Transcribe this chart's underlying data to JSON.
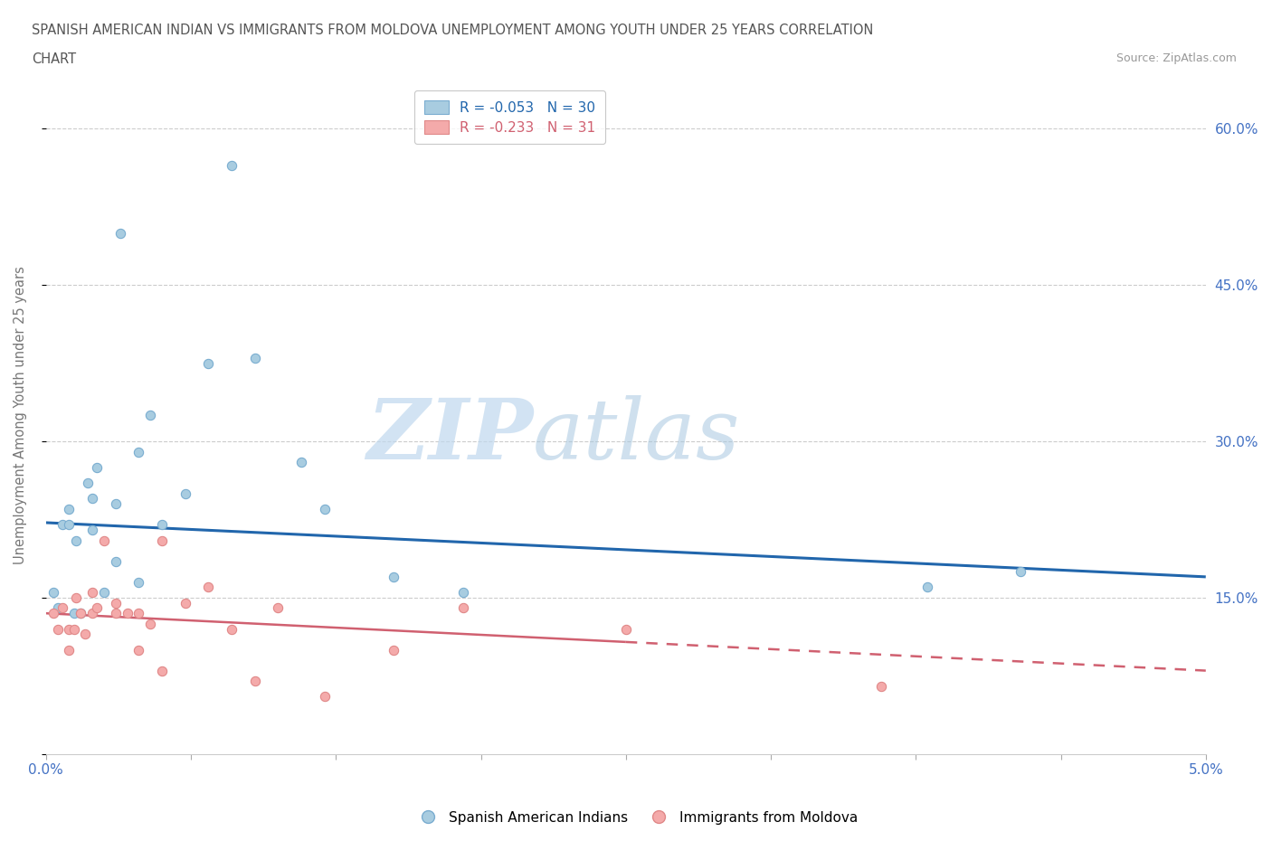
{
  "title_line1": "SPANISH AMERICAN INDIAN VS IMMIGRANTS FROM MOLDOVA UNEMPLOYMENT AMONG YOUTH UNDER 25 YEARS CORRELATION",
  "title_line2": "CHART",
  "source": "Source: ZipAtlas.com",
  "ylabel": "Unemployment Among Youth under 25 years",
  "xlim": [
    0.0,
    0.05
  ],
  "ylim": [
    0.0,
    0.65
  ],
  "yticks": [
    0.0,
    0.15,
    0.3,
    0.45,
    0.6
  ],
  "ytick_labels": [
    "",
    "15.0%",
    "30.0%",
    "45.0%",
    "60.0%"
  ],
  "xticks": [
    0.0,
    0.00625,
    0.0125,
    0.01875,
    0.025,
    0.03125,
    0.0375,
    0.04375,
    0.05
  ],
  "xtick_labels": [
    "0.0%",
    "",
    "",
    "",
    "",
    "",
    "",
    "",
    "5.0%"
  ],
  "blue_scatter_x": [
    0.0003,
    0.0005,
    0.0007,
    0.001,
    0.001,
    0.0012,
    0.0013,
    0.0015,
    0.0018,
    0.002,
    0.002,
    0.0022,
    0.0025,
    0.003,
    0.003,
    0.0032,
    0.004,
    0.004,
    0.0045,
    0.005,
    0.006,
    0.007,
    0.008,
    0.009,
    0.011,
    0.012,
    0.015,
    0.018,
    0.038,
    0.042
  ],
  "blue_scatter_y": [
    0.155,
    0.14,
    0.22,
    0.22,
    0.235,
    0.135,
    0.205,
    0.135,
    0.26,
    0.245,
    0.215,
    0.275,
    0.155,
    0.185,
    0.24,
    0.5,
    0.165,
    0.29,
    0.325,
    0.22,
    0.25,
    0.375,
    0.565,
    0.38,
    0.28,
    0.235,
    0.17,
    0.155,
    0.16,
    0.175
  ],
  "pink_scatter_x": [
    0.0003,
    0.0005,
    0.0007,
    0.001,
    0.001,
    0.0012,
    0.0013,
    0.0015,
    0.0017,
    0.002,
    0.002,
    0.0022,
    0.0025,
    0.003,
    0.003,
    0.0035,
    0.004,
    0.004,
    0.0045,
    0.005,
    0.005,
    0.006,
    0.007,
    0.008,
    0.009,
    0.01,
    0.012,
    0.015,
    0.018,
    0.025,
    0.036
  ],
  "pink_scatter_y": [
    0.135,
    0.12,
    0.14,
    0.12,
    0.1,
    0.12,
    0.15,
    0.135,
    0.115,
    0.155,
    0.135,
    0.14,
    0.205,
    0.135,
    0.145,
    0.135,
    0.135,
    0.1,
    0.125,
    0.08,
    0.205,
    0.145,
    0.16,
    0.12,
    0.07,
    0.14,
    0.055,
    0.1,
    0.14,
    0.12,
    0.065
  ],
  "blue_R": -0.053,
  "blue_N": 30,
  "pink_R": -0.233,
  "pink_N": 31,
  "blue_scatter_color": "#a8cce0",
  "pink_scatter_color": "#f4aaaa",
  "blue_line_color": "#2166ac",
  "pink_line_color": "#d06070",
  "watermark_zip": "#c5d8ee",
  "watermark_atlas": "#aac8e0",
  "legend_label_blue": "Spanish American Indians",
  "legend_label_pink": "Immigrants from Moldova",
  "grid_color": "#cccccc",
  "title_color": "#555555",
  "axis_label_color": "#777777",
  "tick_color": "#4472c4"
}
